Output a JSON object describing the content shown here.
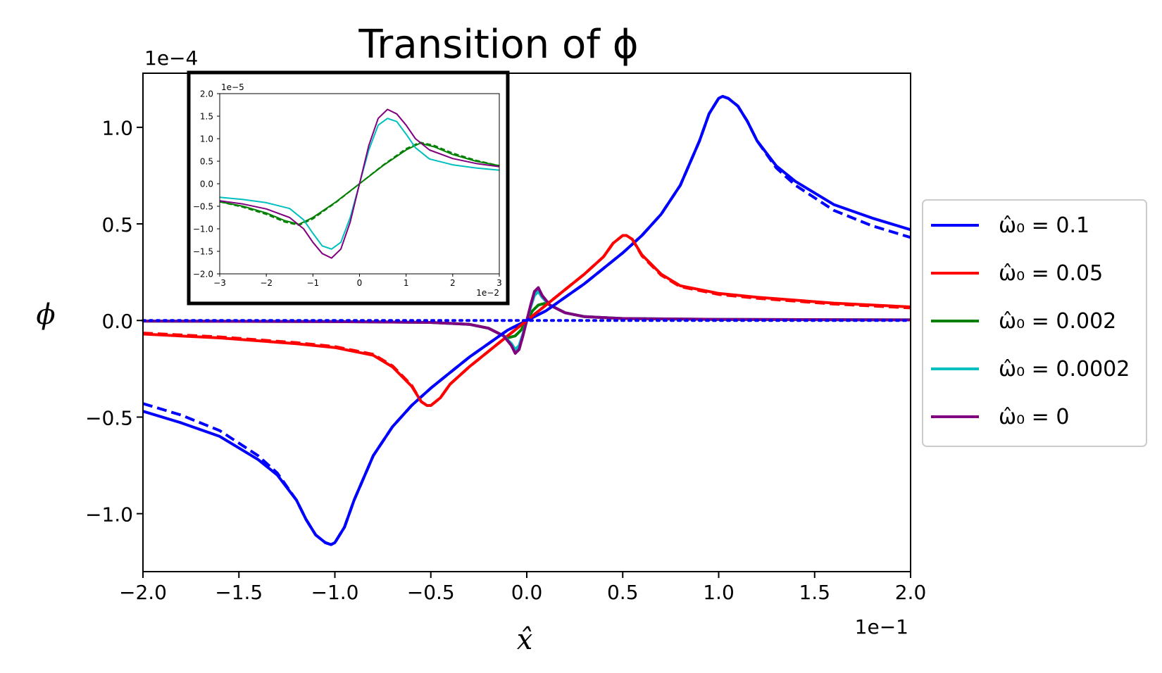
{
  "chart_data": [
    {
      "type": "line",
      "title": "Transition of ϕ",
      "xlabel": "x̂",
      "ylabel": "ϕ",
      "x_offset_text": "1e−1",
      "y_offset_text": "1e−4",
      "xlim": [
        -2.0,
        2.0
      ],
      "ylim": [
        -1.3,
        1.28
      ],
      "xticks": [
        "−2.0",
        "−1.5",
        "−1.0",
        "−0.5",
        "0.0",
        "0.5",
        "1.0",
        "1.5",
        "2.0"
      ],
      "yticks": [
        "−1.0",
        "−0.5",
        "0.0",
        "0.5",
        "1.0"
      ],
      "legend_location": "outside right",
      "series": [
        {
          "name": "ω̂₀ = 0.1",
          "color": "#0000ff",
          "style": "solid",
          "x": [
            -2.0,
            -1.8,
            -1.6,
            -1.4,
            -1.3,
            -1.2,
            -1.15,
            -1.1,
            -1.05,
            -1.02,
            -1.0,
            -0.95,
            -0.9,
            -0.8,
            -0.7,
            -0.6,
            -0.5,
            -0.4,
            -0.3,
            -0.2,
            -0.1,
            0.0,
            0.1,
            0.2,
            0.3,
            0.4,
            0.5,
            0.6,
            0.7,
            0.8,
            0.9,
            0.95,
            1.0,
            1.02,
            1.05,
            1.1,
            1.15,
            1.2,
            1.3,
            1.4,
            1.6,
            1.8,
            2.0
          ],
          "y": [
            -0.47,
            -0.53,
            -0.6,
            -0.72,
            -0.8,
            -0.93,
            -1.03,
            -1.11,
            -1.15,
            -1.16,
            -1.15,
            -1.07,
            -0.93,
            -0.7,
            -0.55,
            -0.44,
            -0.35,
            -0.27,
            -0.19,
            -0.12,
            -0.05,
            0.0,
            0.05,
            0.12,
            0.19,
            0.27,
            0.35,
            0.44,
            0.55,
            0.7,
            0.93,
            1.07,
            1.15,
            1.16,
            1.15,
            1.11,
            1.03,
            0.93,
            0.8,
            0.72,
            0.6,
            0.53,
            0.47
          ]
        },
        {
          "name": "ω̂₀ = 0.05",
          "color": "#ff0000",
          "style": "solid",
          "x": [
            -2.0,
            -1.6,
            -1.2,
            -1.0,
            -0.8,
            -0.7,
            -0.6,
            -0.55,
            -0.52,
            -0.5,
            -0.45,
            -0.4,
            -0.3,
            -0.2,
            -0.1,
            0.0,
            0.1,
            0.2,
            0.3,
            0.4,
            0.45,
            0.5,
            0.52,
            0.55,
            0.6,
            0.7,
            0.8,
            1.0,
            1.2,
            1.6,
            2.0
          ],
          "y": [
            -0.07,
            -0.09,
            -0.12,
            -0.14,
            -0.18,
            -0.24,
            -0.34,
            -0.42,
            -0.44,
            -0.44,
            -0.4,
            -0.33,
            -0.24,
            -0.16,
            -0.08,
            0.0,
            0.08,
            0.16,
            0.24,
            0.33,
            0.4,
            0.44,
            0.44,
            0.42,
            0.34,
            0.24,
            0.18,
            0.14,
            0.12,
            0.09,
            0.07
          ]
        },
        {
          "name": "ω̂₀ = 0.002",
          "color": "#008000",
          "style": "solid",
          "x": [
            -2.0,
            -1.0,
            -0.5,
            -0.3,
            -0.2,
            -0.14,
            -0.1,
            -0.06,
            -0.03,
            0.0,
            0.03,
            0.06,
            0.1,
            0.14,
            0.2,
            0.3,
            0.5,
            1.0,
            2.0
          ],
          "y": [
            -0.003,
            -0.005,
            -0.01,
            -0.02,
            -0.04,
            -0.07,
            -0.09,
            -0.08,
            -0.05,
            0.0,
            0.05,
            0.08,
            0.09,
            0.07,
            0.04,
            0.02,
            0.01,
            0.005,
            0.003
          ]
        },
        {
          "name": "ω̂₀ = 0.0002",
          "color": "#00bfbf",
          "style": "solid",
          "x": [
            -2.0,
            -1.0,
            -0.5,
            -0.3,
            -0.2,
            -0.12,
            -0.08,
            -0.06,
            -0.04,
            -0.02,
            0.0,
            0.02,
            0.04,
            0.06,
            0.08,
            0.12,
            0.2,
            0.3,
            0.5,
            1.0,
            2.0
          ],
          "y": [
            -0.003,
            -0.006,
            -0.01,
            -0.02,
            -0.04,
            -0.08,
            -0.12,
            -0.15,
            -0.13,
            -0.07,
            0.0,
            0.07,
            0.13,
            0.15,
            0.12,
            0.08,
            0.04,
            0.02,
            0.01,
            0.006,
            0.003
          ]
        },
        {
          "name": "ω̂₀ = 0",
          "color": "#800080",
          "style": "solid",
          "x": [
            -2.0,
            -1.0,
            -0.5,
            -0.3,
            -0.2,
            -0.12,
            -0.08,
            -0.06,
            -0.04,
            -0.02,
            0.0,
            0.02,
            0.04,
            0.06,
            0.08,
            0.12,
            0.2,
            0.3,
            0.5,
            1.0,
            2.0
          ],
          "y": [
            -0.003,
            -0.006,
            -0.01,
            -0.02,
            -0.04,
            -0.08,
            -0.13,
            -0.17,
            -0.15,
            -0.08,
            0.0,
            0.08,
            0.15,
            0.17,
            0.13,
            0.08,
            0.04,
            0.02,
            0.01,
            0.006,
            0.003
          ]
        },
        {
          "color": "#0000ff",
          "style": "dashed",
          "x": [
            -2.0,
            -1.8,
            -1.6,
            -1.4,
            -1.3,
            -1.2,
            -1.15,
            -1.1,
            -1.05,
            -1.02,
            -1.0,
            -0.95,
            -0.9,
            -0.8,
            -0.7,
            -0.6,
            -0.5,
            -0.4,
            -0.3,
            -0.2,
            -0.1,
            0.0,
            0.1,
            0.2,
            0.3,
            0.4,
            0.5,
            0.6,
            0.7,
            0.8,
            0.9,
            0.95,
            1.0,
            1.02,
            1.05,
            1.1,
            1.15,
            1.2,
            1.3,
            1.4,
            1.6,
            1.8,
            2.0
          ],
          "y": [
            -0.43,
            -0.49,
            -0.57,
            -0.7,
            -0.79,
            -0.93,
            -1.03,
            -1.11,
            -1.15,
            -1.16,
            -1.15,
            -1.07,
            -0.93,
            -0.7,
            -0.55,
            -0.44,
            -0.35,
            -0.27,
            -0.19,
            -0.12,
            -0.05,
            0.0,
            0.05,
            0.12,
            0.19,
            0.27,
            0.35,
            0.44,
            0.55,
            0.7,
            0.93,
            1.07,
            1.15,
            1.16,
            1.15,
            1.11,
            1.03,
            0.93,
            0.79,
            0.7,
            0.57,
            0.49,
            0.43
          ]
        },
        {
          "color": "#ff0000",
          "style": "dashed",
          "x": [
            -2.0,
            -1.6,
            -1.2,
            -1.0,
            -0.8,
            -0.7,
            -0.6,
            -0.55,
            -0.52,
            -0.5,
            -0.45,
            -0.4,
            -0.3,
            -0.2,
            -0.1,
            0.0,
            0.1,
            0.2,
            0.3,
            0.4,
            0.45,
            0.5,
            0.52,
            0.55,
            0.6,
            0.7,
            0.8,
            1.0,
            1.2,
            1.6,
            2.0
          ],
          "y": [
            -0.065,
            -0.085,
            -0.115,
            -0.135,
            -0.175,
            -0.235,
            -0.335,
            -0.42,
            -0.44,
            -0.44,
            -0.4,
            -0.33,
            -0.24,
            -0.16,
            -0.08,
            0.0,
            0.08,
            0.16,
            0.24,
            0.33,
            0.4,
            0.44,
            0.44,
            0.42,
            0.335,
            0.235,
            0.175,
            0.135,
            0.115,
            0.085,
            0.065
          ]
        },
        {
          "color": "#0000ff",
          "style": "dotted",
          "x": [
            -2.0,
            2.0
          ],
          "y": [
            0.0,
            0.0
          ]
        }
      ]
    },
    {
      "type": "line",
      "inset": true,
      "x_offset_text": "1e−2",
      "y_offset_text": "1e−5",
      "xlim": [
        -3,
        3
      ],
      "ylim": [
        -2.0,
        2.0
      ],
      "xticks": [
        "−3",
        "−2",
        "−1",
        "0",
        "1",
        "2",
        "3"
      ],
      "yticks": [
        "2.0",
        "1.5",
        "1.0",
        "0.5",
        "0.0",
        "−0.5",
        "−1.0",
        "−1.5",
        "−2.0"
      ],
      "series": [
        {
          "color": "#008000",
          "style": "solid",
          "x": [
            -3.0,
            -2.5,
            -2.0,
            -1.6,
            -1.3,
            -1.0,
            -0.5,
            0.0,
            0.5,
            1.0,
            1.3,
            1.6,
            2.0,
            2.5,
            3.0
          ],
          "y": [
            -0.4,
            -0.5,
            -0.65,
            -0.82,
            -0.9,
            -0.75,
            -0.4,
            0.0,
            0.4,
            0.75,
            0.9,
            0.82,
            0.65,
            0.5,
            0.4
          ]
        },
        {
          "color": "#008000",
          "style": "dashed",
          "x": [
            -3.0,
            -2.5,
            -2.0,
            -1.6,
            -1.3,
            -1.0,
            -0.5,
            0.0,
            0.5,
            1.0,
            1.3,
            1.6,
            2.0,
            2.5,
            3.0
          ],
          "y": [
            -0.4,
            -0.52,
            -0.68,
            -0.85,
            -0.92,
            -0.78,
            -0.41,
            0.0,
            0.41,
            0.78,
            0.92,
            0.85,
            0.68,
            0.52,
            0.4
          ]
        },
        {
          "color": "#00bfbf",
          "style": "solid",
          "x": [
            -3.0,
            -2.5,
            -2.0,
            -1.5,
            -1.2,
            -1.0,
            -0.8,
            -0.6,
            -0.4,
            -0.2,
            0.0,
            0.2,
            0.4,
            0.6,
            0.8,
            1.0,
            1.2,
            1.5,
            2.0,
            2.5,
            3.0
          ],
          "y": [
            -0.3,
            -0.35,
            -0.42,
            -0.55,
            -0.8,
            -1.1,
            -1.38,
            -1.45,
            -1.3,
            -0.75,
            0.0,
            0.75,
            1.3,
            1.45,
            1.38,
            1.1,
            0.8,
            0.55,
            0.42,
            0.35,
            0.3
          ]
        },
        {
          "color": "#800080",
          "style": "solid",
          "x": [
            -3.0,
            -2.5,
            -2.0,
            -1.5,
            -1.2,
            -1.0,
            -0.8,
            -0.6,
            -0.4,
            -0.2,
            0.0,
            0.2,
            0.4,
            0.6,
            0.8,
            1.0,
            1.2,
            1.5,
            2.0,
            2.5,
            3.0
          ],
          "y": [
            -0.38,
            -0.45,
            -0.56,
            -0.75,
            -1.0,
            -1.3,
            -1.55,
            -1.65,
            -1.45,
            -0.85,
            0.0,
            0.85,
            1.45,
            1.65,
            1.55,
            1.3,
            1.0,
            0.75,
            0.56,
            0.45,
            0.38
          ]
        }
      ]
    }
  ]
}
